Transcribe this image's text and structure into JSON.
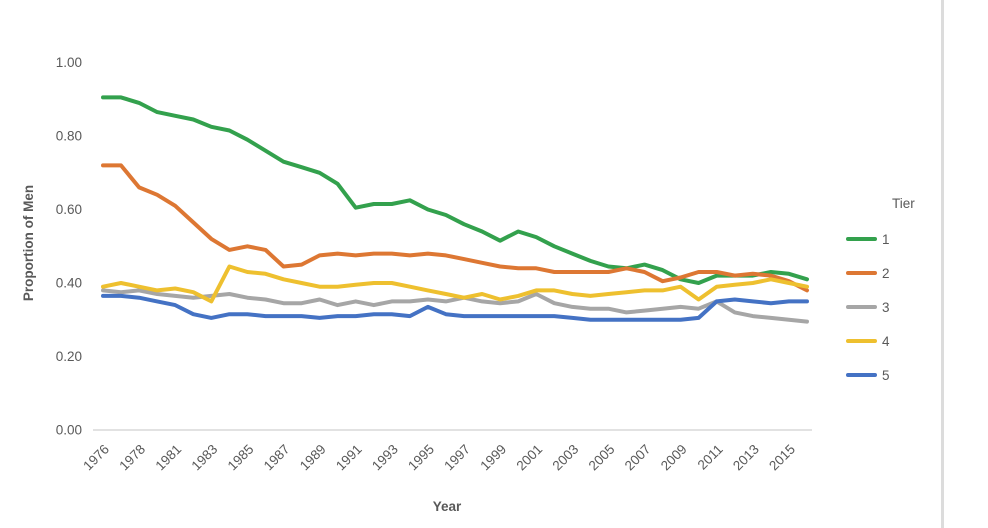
{
  "chart": {
    "y_axis_title": "Proportion of Men",
    "x_axis_title": "Year",
    "legend_title": "Tier"
  },
  "chart_data": {
    "type": "line",
    "title": "",
    "xlabel": "Year",
    "ylabel": "Proportion of Men",
    "x": [
      1976,
      1977,
      1978,
      1980,
      1981,
      1982,
      1983,
      1984,
      1985,
      1986,
      1987,
      1988,
      1989,
      1990,
      1991,
      1992,
      1993,
      1994,
      1995,
      1996,
      1997,
      1998,
      1999,
      2000,
      2001,
      2002,
      2003,
      2004,
      2005,
      2006,
      2007,
      2008,
      2009,
      2010,
      2011,
      2012,
      2013,
      2014,
      2015,
      2016
    ],
    "x_tick_label_interval": 2,
    "x_tick_labels_shown": [
      "1976",
      "1978",
      "1981",
      "1983",
      "1985",
      "1987",
      "1989",
      "1991",
      "1993",
      "1995",
      "1997",
      "1999",
      "2001",
      "2003",
      "2005",
      "2007",
      "2009",
      "2011",
      "2013",
      "2015"
    ],
    "ylim": [
      0.0,
      1.0
    ],
    "y_ticks": [
      {
        "label": "0.00",
        "value": 0.0
      },
      {
        "label": "0.20",
        "value": 0.2
      },
      {
        "label": "0.40",
        "value": 0.4
      },
      {
        "label": "0.60",
        "value": 0.6
      },
      {
        "label": "0.80",
        "value": 0.8
      },
      {
        "label": "1.00",
        "value": 1.0
      }
    ],
    "grid": "none (baseline only)",
    "legend": {
      "title": "Tier",
      "position": "right"
    },
    "axis_text_color": "#595959",
    "baseline_color": "#d9d9d9",
    "series": [
      {
        "name": "1",
        "color": "#33a14d",
        "values": [
          0.905,
          0.905,
          0.89,
          0.865,
          0.855,
          0.845,
          0.825,
          0.815,
          0.79,
          0.76,
          0.73,
          0.715,
          0.7,
          0.67,
          0.605,
          0.615,
          0.615,
          0.625,
          0.6,
          0.585,
          0.56,
          0.54,
          0.515,
          0.54,
          0.525,
          0.5,
          0.48,
          0.46,
          0.445,
          0.44,
          0.45,
          0.435,
          0.41,
          0.4,
          0.42,
          0.42,
          0.42,
          0.43,
          0.425,
          0.41
        ]
      },
      {
        "name": "2",
        "color": "#dd7733",
        "values": [
          0.72,
          0.72,
          0.66,
          0.64,
          0.61,
          0.565,
          0.52,
          0.49,
          0.5,
          0.49,
          0.445,
          0.45,
          0.475,
          0.48,
          0.475,
          0.48,
          0.48,
          0.475,
          0.48,
          0.475,
          0.465,
          0.455,
          0.445,
          0.44,
          0.44,
          0.43,
          0.43,
          0.43,
          0.43,
          0.44,
          0.43,
          0.405,
          0.415,
          0.43,
          0.43,
          0.42,
          0.425,
          0.42,
          0.405,
          0.38
        ]
      },
      {
        "name": "3",
        "color": "#a6a6a6",
        "values": [
          0.38,
          0.375,
          0.38,
          0.37,
          0.365,
          0.36,
          0.365,
          0.37,
          0.36,
          0.355,
          0.345,
          0.345,
          0.355,
          0.34,
          0.35,
          0.34,
          0.35,
          0.35,
          0.355,
          0.35,
          0.36,
          0.35,
          0.345,
          0.35,
          0.37,
          0.345,
          0.335,
          0.33,
          0.33,
          0.32,
          0.325,
          0.33,
          0.335,
          0.33,
          0.35,
          0.32,
          0.31,
          0.305,
          0.3,
          0.295
        ]
      },
      {
        "name": "4",
        "color": "#eec02f",
        "values": [
          0.39,
          0.4,
          0.39,
          0.38,
          0.385,
          0.375,
          0.35,
          0.445,
          0.43,
          0.425,
          0.41,
          0.4,
          0.39,
          0.39,
          0.395,
          0.4,
          0.4,
          0.39,
          0.38,
          0.37,
          0.36,
          0.37,
          0.355,
          0.365,
          0.38,
          0.38,
          0.37,
          0.365,
          0.37,
          0.375,
          0.38,
          0.38,
          0.39,
          0.355,
          0.39,
          0.395,
          0.4,
          0.41,
          0.4,
          0.39
        ]
      },
      {
        "name": "5",
        "color": "#4472c4",
        "values": [
          0.365,
          0.365,
          0.36,
          0.35,
          0.34,
          0.315,
          0.305,
          0.315,
          0.315,
          0.31,
          0.31,
          0.31,
          0.305,
          0.31,
          0.31,
          0.315,
          0.315,
          0.31,
          0.335,
          0.315,
          0.31,
          0.31,
          0.31,
          0.31,
          0.31,
          0.31,
          0.305,
          0.3,
          0.3,
          0.3,
          0.3,
          0.3,
          0.3,
          0.305,
          0.35,
          0.355,
          0.35,
          0.345,
          0.35,
          0.35
        ]
      }
    ]
  }
}
